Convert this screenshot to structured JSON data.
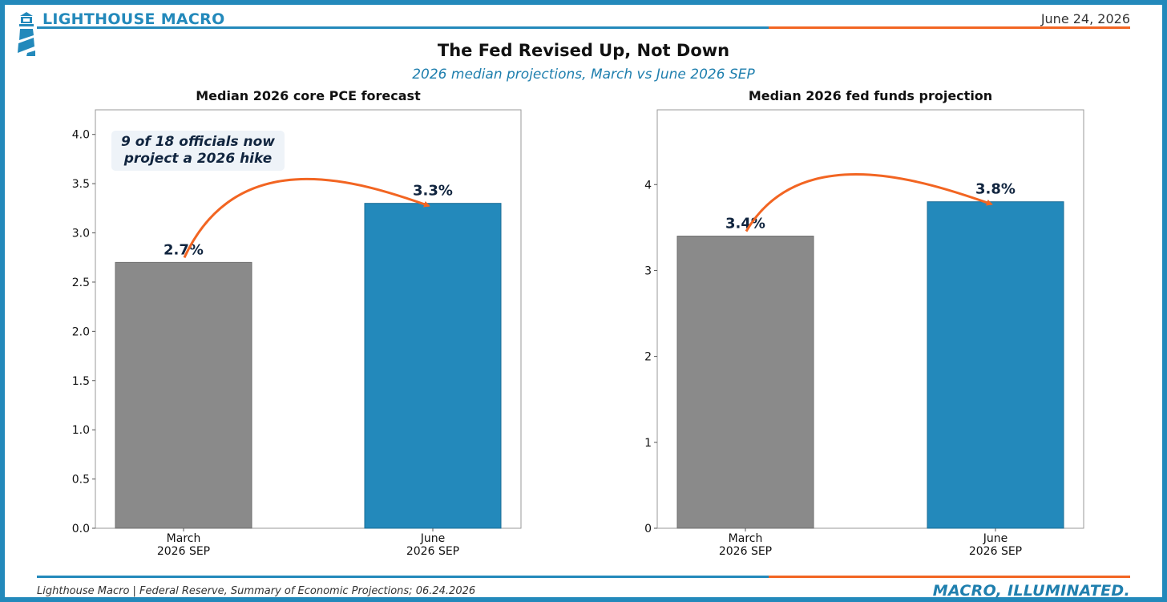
{
  "header": {
    "brand": "LIGHTHOUSE MACRO",
    "date": "June 24, 2026",
    "title": "The Fed Revised Up, Not Down",
    "subtitle": "2026 median projections, March vs June 2026 SEP"
  },
  "footer": {
    "source": "Lighthouse Macro | Federal Reserve, Summary of Economic Projections; 06.24.2026",
    "tagline": "MACRO, ILLUMINATED."
  },
  "colors": {
    "accent": "#2389bb",
    "orange": "#f26522",
    "gray_bar": "#8a8a8a",
    "label_navy": "#11253f"
  },
  "chart_data": [
    {
      "type": "bar",
      "title": "Median 2026 core PCE forecast",
      "categories": [
        "March\n2026 SEP",
        "June\n2026 SEP"
      ],
      "values": [
        2.7,
        3.3
      ],
      "data_labels": [
        "2.7%",
        "3.3%"
      ],
      "ylim": [
        0,
        4.25
      ],
      "yticks": [
        "0.0",
        "0.5",
        "1.0",
        "1.5",
        "2.0",
        "2.5",
        "3.0",
        "3.5",
        "4.0"
      ],
      "ytick_values": [
        0,
        0.5,
        1,
        1.5,
        2,
        2.5,
        3,
        3.5,
        4
      ],
      "annotation": "9 of 18 officials now\nproject a 2026 hike",
      "grid": false
    },
    {
      "type": "bar",
      "title": "Median 2026 fed funds projection",
      "categories": [
        "March\n2026 SEP",
        "June\n2026 SEP"
      ],
      "values": [
        3.4,
        3.8
      ],
      "data_labels": [
        "3.4%",
        "3.8%"
      ],
      "ylim": [
        0,
        4.87
      ],
      "yticks": [
        "0",
        "1",
        "2",
        "3",
        "4"
      ],
      "ytick_values": [
        0,
        1,
        2,
        3,
        4
      ],
      "grid": false
    }
  ]
}
